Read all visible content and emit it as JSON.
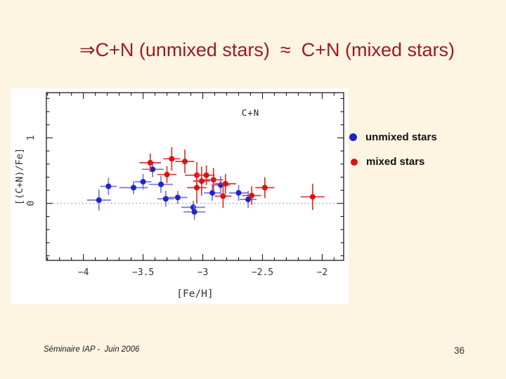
{
  "slide": {
    "title": "⇒C+N (unmixed stars)  ≈  C+N (mixed stars)",
    "footer": "Séminaire IAP -  Juin 2006",
    "page_number": "36",
    "colors": {
      "background": "#FDF5E1",
      "title_text": "#A01820",
      "figure_background": "#FFFFFF"
    }
  },
  "legend": {
    "items": [
      {
        "label": "unmixed stars",
        "color": "#2222CC",
        "marker": "dot-icon"
      },
      {
        "label": "mixed stars",
        "color": "#DD1111",
        "marker": "dot-icon"
      }
    ]
  },
  "chart_data": {
    "type": "scatter",
    "title": "C+N",
    "xlabel": "[Fe/H]",
    "ylabel": "[(C+N)/Fe]",
    "xlim": [
      -4.31,
      -1.82
    ],
    "ylim": [
      -0.87,
      1.69
    ],
    "grid": false,
    "zero_line_dotted": true,
    "annotation": {
      "text": "C+N",
      "x": -2.6,
      "y": 1.38
    },
    "xticks": {
      "major": [
        -4,
        -3.5,
        -3,
        -2.5,
        -2
      ],
      "labels": [
        "−4",
        "−3.5",
        "−3",
        "−2.5",
        "−2"
      ],
      "minor_step": 0.1
    },
    "yticks": {
      "major": [
        0,
        1
      ],
      "labels": [
        "0",
        "1"
      ],
      "minor_step": 0.2
    },
    "series": [
      {
        "name": "unmixed stars",
        "color": "#2222CC",
        "bar_color": "#7777DD",
        "points_format": [
          "FeH",
          "CN_Fe",
          "x_err",
          "y_err"
        ],
        "points": [
          [
            -3.87,
            0.05,
            0.1,
            0.16
          ],
          [
            -3.79,
            0.26,
            0.07,
            0.13
          ],
          [
            -3.58,
            0.24,
            0.12,
            0.1
          ],
          [
            -3.5,
            0.33,
            0.07,
            0.12
          ],
          [
            -3.42,
            0.52,
            0.09,
            0.12
          ],
          [
            -3.35,
            0.29,
            0.1,
            0.13
          ],
          [
            -3.31,
            0.07,
            0.07,
            0.12
          ],
          [
            -3.21,
            0.09,
            0.08,
            0.1
          ],
          [
            -3.08,
            -0.06,
            0.1,
            0.1
          ],
          [
            -3.07,
            -0.13,
            0.09,
            0.12
          ],
          [
            -2.92,
            0.16,
            0.07,
            0.12
          ],
          [
            -2.85,
            0.28,
            0.08,
            0.14
          ],
          [
            -2.7,
            0.16,
            0.08,
            0.12
          ],
          [
            -2.62,
            0.06,
            0.07,
            0.13
          ]
        ]
      },
      {
        "name": "mixed stars",
        "color": "#DD1111",
        "bar_color": "#DD3333",
        "points_format": [
          "FeH",
          "CN_Fe",
          "x_err",
          "y_err"
        ],
        "points": [
          [
            -3.44,
            0.62,
            0.09,
            0.14
          ],
          [
            -3.3,
            0.44,
            0.08,
            0.13
          ],
          [
            -3.26,
            0.68,
            0.07,
            0.18
          ],
          [
            -3.15,
            0.64,
            0.08,
            0.18
          ],
          [
            -3.05,
            0.43,
            0.1,
            0.2
          ],
          [
            -3.05,
            0.24,
            0.08,
            0.24
          ],
          [
            -3.01,
            0.34,
            0.07,
            0.22
          ],
          [
            -2.97,
            0.43,
            0.07,
            0.15
          ],
          [
            -2.91,
            0.36,
            0.08,
            0.18
          ],
          [
            -2.83,
            0.11,
            0.07,
            0.18
          ],
          [
            -2.81,
            0.3,
            0.09,
            0.15
          ],
          [
            -2.59,
            0.12,
            0.08,
            0.14
          ],
          [
            -2.48,
            0.24,
            0.08,
            0.16
          ],
          [
            -2.08,
            0.1,
            0.1,
            0.2
          ]
        ]
      }
    ]
  }
}
